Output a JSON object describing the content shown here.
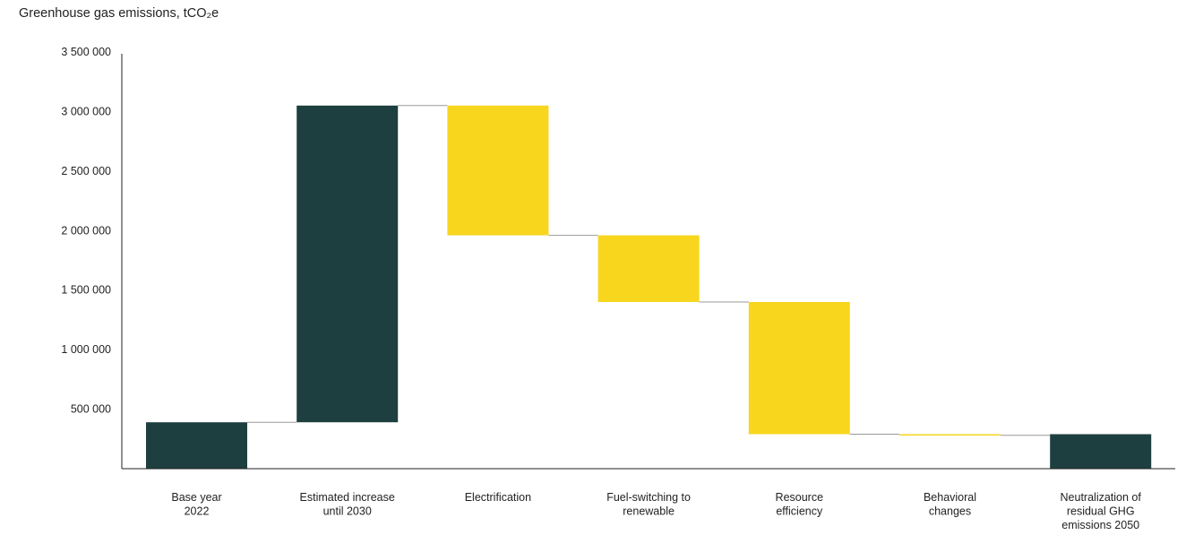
{
  "chart_data": {
    "type": "bar",
    "subtype": "waterfall",
    "title": "Greenhouse gas emissions, tCO₂e",
    "ylim": [
      0,
      3500000
    ],
    "yticks": [
      {
        "value": 500000,
        "label": "500 000"
      },
      {
        "value": 1000000,
        "label": "1 000 000"
      },
      {
        "value": 1500000,
        "label": "1 500 000"
      },
      {
        "value": 2000000,
        "label": "2 000 000"
      },
      {
        "value": 2500000,
        "label": "2 500 000"
      },
      {
        "value": 3000000,
        "label": "3 000 000"
      },
      {
        "value": 3500000,
        "label": "3 500 000"
      }
    ],
    "grid": false,
    "categories": [
      "Base year 2022",
      "Estimated increase until 2030",
      "Electrification",
      "Fuel-switching to renewable",
      "Resource efficiency",
      "Behavioral changes",
      "Neutralization of residual GHG emissions 2050"
    ],
    "category_label_lines": [
      [
        "Base year",
        "2022"
      ],
      [
        "Estimated increase",
        "until 2030"
      ],
      [
        "Electrification"
      ],
      [
        "Fuel-switching to",
        "renewable"
      ],
      [
        "Resource",
        "efficiency"
      ],
      [
        "Behavioral",
        "changes"
      ],
      [
        "Neutralization of",
        "residual GHG",
        "emissions 2050"
      ]
    ],
    "bars": [
      {
        "start": 0,
        "end": 390000,
        "kind": "total"
      },
      {
        "start": 390000,
        "end": 3050000,
        "kind": "total"
      },
      {
        "start": 3050000,
        "end": 1960000,
        "kind": "reduction"
      },
      {
        "start": 1960000,
        "end": 1400000,
        "kind": "reduction"
      },
      {
        "start": 1400000,
        "end": 290000,
        "kind": "reduction"
      },
      {
        "start": 290000,
        "end": 280000,
        "kind": "reduction"
      },
      {
        "start": 0,
        "end": 290000,
        "kind": "total"
      }
    ],
    "colors": {
      "total": "#1e3f40",
      "reduction": "#f7d61d",
      "connector": "#999999",
      "axis": "#222222"
    }
  }
}
